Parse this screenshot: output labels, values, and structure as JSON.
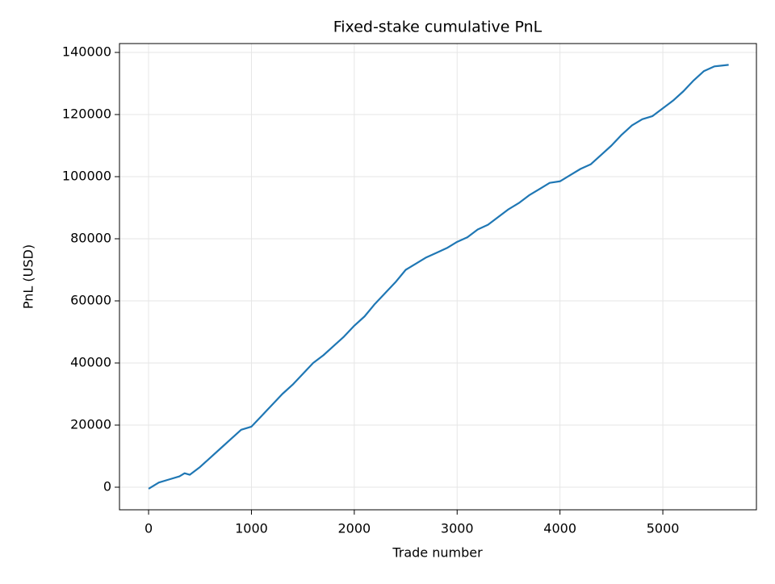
{
  "chart_data": {
    "type": "line",
    "title": "Fixed-stake cumulative PnL",
    "x_label": "Trade number",
    "y_label": "PnL (USD)",
    "x": [
      0,
      100,
      200,
      300,
      350,
      400,
      500,
      600,
      700,
      800,
      900,
      1000,
      1100,
      1200,
      1300,
      1400,
      1500,
      1600,
      1700,
      1800,
      1900,
      2000,
      2100,
      2200,
      2300,
      2400,
      2500,
      2600,
      2700,
      2800,
      2900,
      3000,
      3100,
      3200,
      3300,
      3400,
      3500,
      3600,
      3700,
      3800,
      3900,
      4000,
      4100,
      4200,
      4300,
      4400,
      4500,
      4600,
      4700,
      4800,
      4900,
      5000,
      5100,
      5200,
      5300,
      5400,
      5500,
      5640
    ],
    "series": [
      {
        "name": "PnL",
        "color": "#1f77b4",
        "values": [
          -500,
          1500,
          2500,
          3500,
          4500,
          4000,
          6500,
          9500,
          12500,
          15500,
          18500,
          19500,
          23000,
          26500,
          30000,
          33000,
          36500,
          40000,
          42500,
          45500,
          48500,
          52000,
          55000,
          59000,
          62500,
          66000,
          70000,
          72000,
          74000,
          75500,
          77000,
          79000,
          80500,
          83000,
          84500,
          87000,
          89500,
          91500,
          94000,
          96000,
          98000,
          98500,
          100500,
          102500,
          104000,
          107000,
          110000,
          113500,
          116500,
          118500,
          119500,
          122000,
          124500,
          127500,
          131000,
          134000,
          135500,
          136000
        ]
      }
    ],
    "xlim": [
      -283,
      5910
    ],
    "ylim": [
      -7273,
      142857
    ],
    "xticks": [
      0,
      1000,
      2000,
      3000,
      4000,
      5000
    ],
    "yticks": [
      0,
      20000,
      40000,
      60000,
      80000,
      100000,
      120000,
      140000
    ],
    "grid": true
  }
}
